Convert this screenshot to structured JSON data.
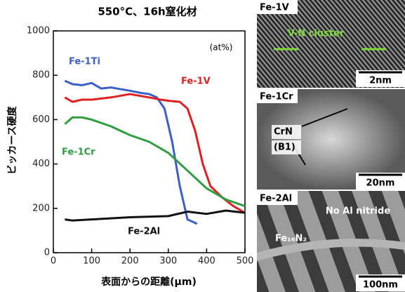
{
  "chart_data": {
    "type": "line",
    "title": "550°C、16h窒化材",
    "annotation": "(at%)",
    "xlabel": "表面からの距離(μm)",
    "ylabel": "ビッカース硬度",
    "xlim": [
      0,
      500
    ],
    "xticks": [
      0,
      100,
      200,
      300,
      400,
      500
    ],
    "ylim": [
      0,
      1000
    ],
    "yticks": [
      0,
      200,
      400,
      600,
      800,
      1000
    ],
    "series": [
      {
        "name": "Fe-1Ti",
        "color": "#3a5fcd",
        "x": [
          30,
          50,
          75,
          100,
          125,
          150,
          200,
          230,
          250,
          270,
          290,
          310,
          330,
          350,
          375
        ],
        "values": [
          775,
          760,
          755,
          765,
          740,
          745,
          730,
          720,
          715,
          700,
          650,
          500,
          300,
          150,
          130
        ]
      },
      {
        "name": "Fe-1V",
        "color": "#e02020",
        "x": [
          30,
          50,
          75,
          100,
          150,
          200,
          250,
          280,
          300,
          330,
          350,
          370,
          390,
          410,
          440,
          470,
          500
        ],
        "values": [
          700,
          680,
          690,
          690,
          700,
          715,
          700,
          690,
          685,
          680,
          650,
          550,
          400,
          300,
          250,
          210,
          180
        ]
      },
      {
        "name": "Fe-1Cr",
        "color": "#2e9e3e",
        "x": [
          30,
          50,
          75,
          100,
          150,
          200,
          250,
          300,
          350,
          400,
          450,
          500
        ],
        "values": [
          580,
          610,
          610,
          600,
          570,
          530,
          500,
          450,
          370,
          290,
          240,
          210
        ]
      },
      {
        "name": "Fe-2Al",
        "color": "#111111",
        "x": [
          30,
          50,
          100,
          200,
          300,
          350,
          400,
          450,
          500
        ],
        "values": [
          150,
          145,
          150,
          160,
          165,
          185,
          175,
          190,
          180
        ]
      }
    ]
  },
  "micrographs": [
    {
      "label": "Fe-1V",
      "notes": [
        "V-N cluster"
      ],
      "scale": "2nm"
    },
    {
      "label": "Fe-1Cr",
      "notes": [
        "CrN",
        "(B1)"
      ],
      "scale": "20nm"
    },
    {
      "label": "Fe-2Al",
      "notes": [
        "No Al nitride",
        "Fe₁₆N₂"
      ],
      "scale": "100nm"
    }
  ]
}
